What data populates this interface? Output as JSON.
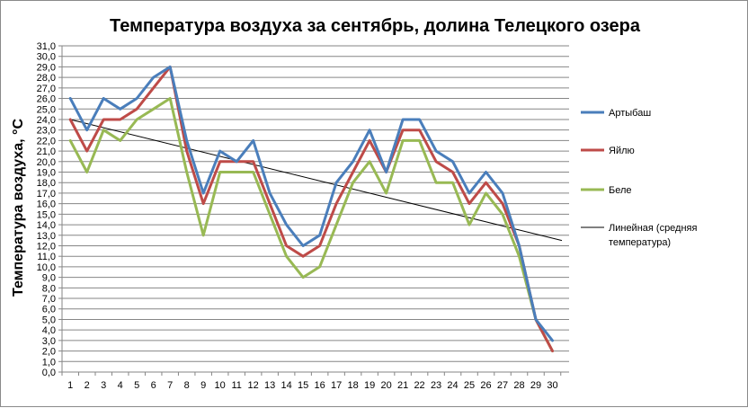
{
  "chart_data": {
    "type": "line",
    "title": "Температура воздуха за сентябрь, долина Телецкого озера",
    "xlabel": "",
    "ylabel": "Температура воздуха, °C",
    "ylim": [
      0,
      31
    ],
    "y_tick_labels": [
      "0,0",
      "1,0",
      "2,0",
      "3,0",
      "4,0",
      "5,0",
      "6,0",
      "7,0",
      "8,0",
      "9,0",
      "10,0",
      "11,0",
      "12,0",
      "13,0",
      "14,0",
      "15,0",
      "16,0",
      "17,0",
      "18,0",
      "19,0",
      "20,0",
      "21,0",
      "22,0",
      "23,0",
      "24,0",
      "25,0",
      "26,0",
      "27,0",
      "28,0",
      "29,0",
      "30,0",
      "31,0"
    ],
    "categories": [
      "1",
      "2",
      "3",
      "4",
      "5",
      "6",
      "7",
      "8",
      "9",
      "10",
      "11",
      "12",
      "13",
      "14",
      "15",
      "16",
      "17",
      "18",
      "19",
      "20",
      "21",
      "22",
      "23",
      "24",
      "25",
      "26",
      "27",
      "28",
      "29",
      "30"
    ],
    "grid": true,
    "legend_position": "right",
    "series": [
      {
        "name": "Артыбаш",
        "color": "#4a7ebb",
        "values": [
          26,
          23,
          26,
          25,
          26,
          28,
          29,
          22,
          17,
          21,
          20,
          22,
          17,
          14,
          12,
          13,
          18,
          20,
          23,
          19,
          24,
          24,
          21,
          20,
          17,
          19,
          17,
          12,
          5,
          3
        ]
      },
      {
        "name": "Яйлю",
        "color": "#be4b48",
        "values": [
          24,
          21,
          24,
          24,
          25,
          27,
          29,
          21,
          16,
          20,
          20,
          20,
          16,
          12,
          11,
          12,
          16,
          19,
          22,
          19,
          23,
          23,
          20,
          19,
          16,
          18,
          16,
          12,
          5,
          2
        ]
      },
      {
        "name": "Беле",
        "color": "#98b954",
        "values": [
          22,
          19,
          23,
          22,
          24,
          25,
          26,
          19,
          13,
          19,
          19,
          19,
          15,
          11,
          9,
          10,
          14,
          18,
          20,
          17,
          22,
          22,
          18,
          18,
          14,
          17,
          15,
          11,
          5,
          2
        ]
      }
    ],
    "trendline": {
      "name": "Линейная (средняя температура)",
      "legend_lines": [
        "Линейная (средняя",
        "температура)"
      ],
      "color": "#000000",
      "start": 24.0,
      "end": 12.5
    }
  }
}
